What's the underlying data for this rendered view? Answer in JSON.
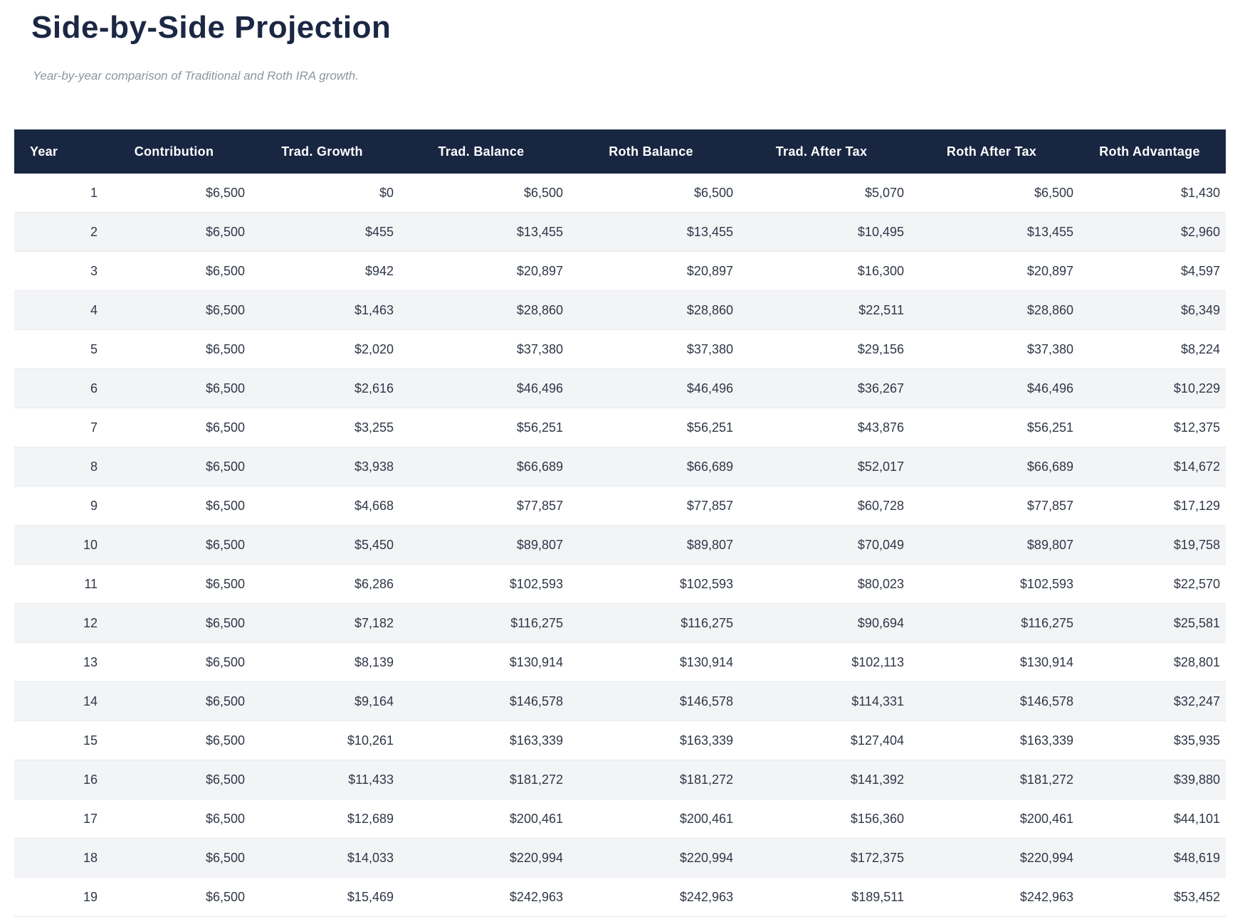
{
  "page": {
    "title": "Side-by-Side Projection",
    "subtitle": "Year-by-year comparison of Traditional and Roth IRA growth."
  },
  "colors": {
    "header_bg": "#192642",
    "title_text": "#1b2743",
    "subtitle_text": "#8e959f",
    "cell_text": "#2f3747",
    "row_alt_bg": "#f3f4f6",
    "row_border": "#e9eaee"
  },
  "table": {
    "columns": [
      "Year",
      "Contribution",
      "Trad. Growth",
      "Trad. Balance",
      "Roth Balance",
      "Trad. After Tax",
      "Roth After Tax",
      "Roth Advantage"
    ],
    "rows": [
      [
        "1",
        "$6,500",
        "$0",
        "$6,500",
        "$6,500",
        "$5,070",
        "$6,500",
        "$1,430"
      ],
      [
        "2",
        "$6,500",
        "$455",
        "$13,455",
        "$13,455",
        "$10,495",
        "$13,455",
        "$2,960"
      ],
      [
        "3",
        "$6,500",
        "$942",
        "$20,897",
        "$20,897",
        "$16,300",
        "$20,897",
        "$4,597"
      ],
      [
        "4",
        "$6,500",
        "$1,463",
        "$28,860",
        "$28,860",
        "$22,511",
        "$28,860",
        "$6,349"
      ],
      [
        "5",
        "$6,500",
        "$2,020",
        "$37,380",
        "$37,380",
        "$29,156",
        "$37,380",
        "$8,224"
      ],
      [
        "6",
        "$6,500",
        "$2,616",
        "$46,496",
        "$46,496",
        "$36,267",
        "$46,496",
        "$10,229"
      ],
      [
        "7",
        "$6,500",
        "$3,255",
        "$56,251",
        "$56,251",
        "$43,876",
        "$56,251",
        "$12,375"
      ],
      [
        "8",
        "$6,500",
        "$3,938",
        "$66,689",
        "$66,689",
        "$52,017",
        "$66,689",
        "$14,672"
      ],
      [
        "9",
        "$6,500",
        "$4,668",
        "$77,857",
        "$77,857",
        "$60,728",
        "$77,857",
        "$17,129"
      ],
      [
        "10",
        "$6,500",
        "$5,450",
        "$89,807",
        "$89,807",
        "$70,049",
        "$89,807",
        "$19,758"
      ],
      [
        "11",
        "$6,500",
        "$6,286",
        "$102,593",
        "$102,593",
        "$80,023",
        "$102,593",
        "$22,570"
      ],
      [
        "12",
        "$6,500",
        "$7,182",
        "$116,275",
        "$116,275",
        "$90,694",
        "$116,275",
        "$25,581"
      ],
      [
        "13",
        "$6,500",
        "$8,139",
        "$130,914",
        "$130,914",
        "$102,113",
        "$130,914",
        "$28,801"
      ],
      [
        "14",
        "$6,500",
        "$9,164",
        "$146,578",
        "$146,578",
        "$114,331",
        "$146,578",
        "$32,247"
      ],
      [
        "15",
        "$6,500",
        "$10,261",
        "$163,339",
        "$163,339",
        "$127,404",
        "$163,339",
        "$35,935"
      ],
      [
        "16",
        "$6,500",
        "$11,433",
        "$181,272",
        "$181,272",
        "$141,392",
        "$181,272",
        "$39,880"
      ],
      [
        "17",
        "$6,500",
        "$12,689",
        "$200,461",
        "$200,461",
        "$156,360",
        "$200,461",
        "$44,101"
      ],
      [
        "18",
        "$6,500",
        "$14,033",
        "$220,994",
        "$220,994",
        "$172,375",
        "$220,994",
        "$48,619"
      ],
      [
        "19",
        "$6,500",
        "$15,469",
        "$242,963",
        "$242,963",
        "$189,511",
        "$242,963",
        "$53,452"
      ]
    ]
  }
}
